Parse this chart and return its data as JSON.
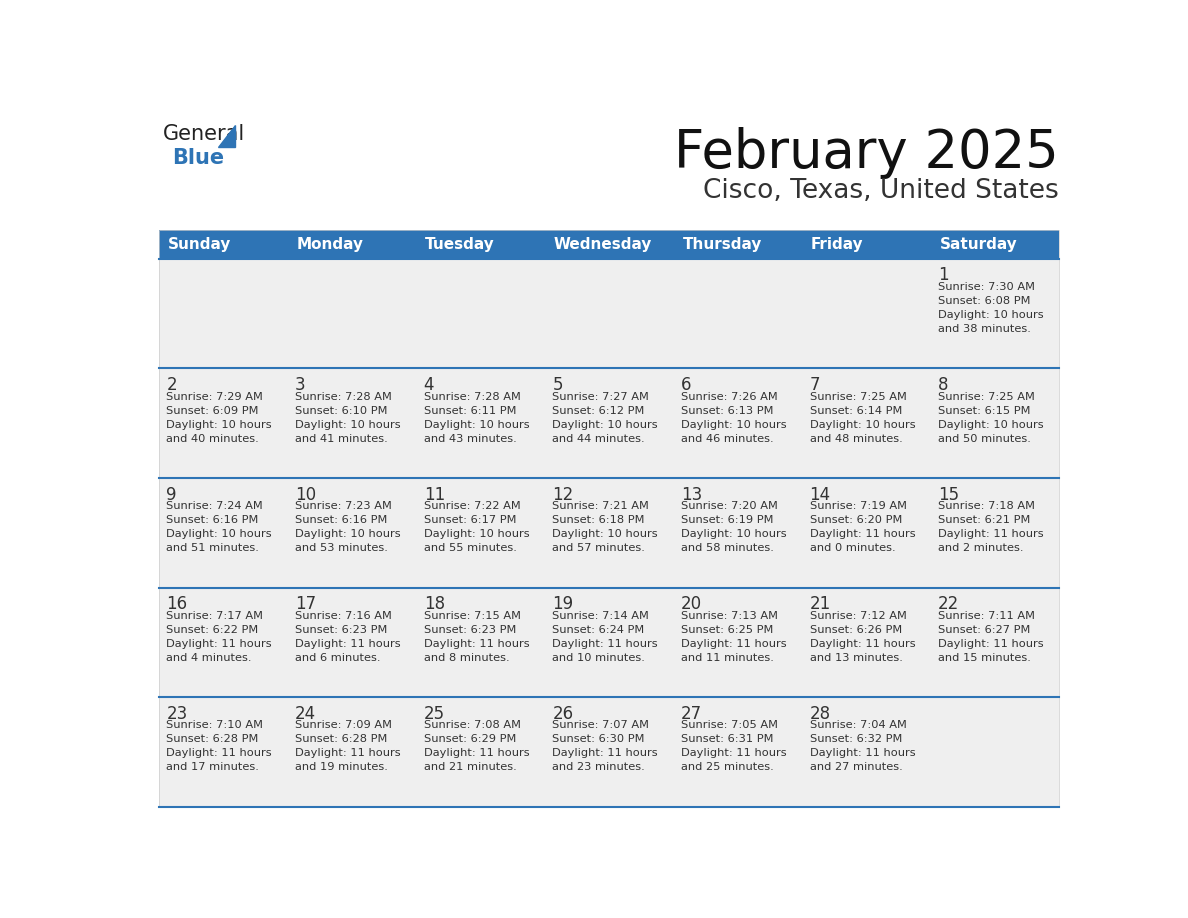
{
  "title": "February 2025",
  "subtitle": "Cisco, Texas, United States",
  "header_color": "#2E74B5",
  "header_text_color": "#FFFFFF",
  "cell_bg_color": "#EFEFEF",
  "border_color": "#2E74B5",
  "row_line_color": "#2E74B5",
  "text_color": "#333333",
  "day_number_color": "#333333",
  "day_headers": [
    "Sunday",
    "Monday",
    "Tuesday",
    "Wednesday",
    "Thursday",
    "Friday",
    "Saturday"
  ],
  "weeks": [
    [
      {
        "day": "",
        "info": ""
      },
      {
        "day": "",
        "info": ""
      },
      {
        "day": "",
        "info": ""
      },
      {
        "day": "",
        "info": ""
      },
      {
        "day": "",
        "info": ""
      },
      {
        "day": "",
        "info": ""
      },
      {
        "day": "1",
        "info": "Sunrise: 7:30 AM\nSunset: 6:08 PM\nDaylight: 10 hours\nand 38 minutes."
      }
    ],
    [
      {
        "day": "2",
        "info": "Sunrise: 7:29 AM\nSunset: 6:09 PM\nDaylight: 10 hours\nand 40 minutes."
      },
      {
        "day": "3",
        "info": "Sunrise: 7:28 AM\nSunset: 6:10 PM\nDaylight: 10 hours\nand 41 minutes."
      },
      {
        "day": "4",
        "info": "Sunrise: 7:28 AM\nSunset: 6:11 PM\nDaylight: 10 hours\nand 43 minutes."
      },
      {
        "day": "5",
        "info": "Sunrise: 7:27 AM\nSunset: 6:12 PM\nDaylight: 10 hours\nand 44 minutes."
      },
      {
        "day": "6",
        "info": "Sunrise: 7:26 AM\nSunset: 6:13 PM\nDaylight: 10 hours\nand 46 minutes."
      },
      {
        "day": "7",
        "info": "Sunrise: 7:25 AM\nSunset: 6:14 PM\nDaylight: 10 hours\nand 48 minutes."
      },
      {
        "day": "8",
        "info": "Sunrise: 7:25 AM\nSunset: 6:15 PM\nDaylight: 10 hours\nand 50 minutes."
      }
    ],
    [
      {
        "day": "9",
        "info": "Sunrise: 7:24 AM\nSunset: 6:16 PM\nDaylight: 10 hours\nand 51 minutes."
      },
      {
        "day": "10",
        "info": "Sunrise: 7:23 AM\nSunset: 6:16 PM\nDaylight: 10 hours\nand 53 minutes."
      },
      {
        "day": "11",
        "info": "Sunrise: 7:22 AM\nSunset: 6:17 PM\nDaylight: 10 hours\nand 55 minutes."
      },
      {
        "day": "12",
        "info": "Sunrise: 7:21 AM\nSunset: 6:18 PM\nDaylight: 10 hours\nand 57 minutes."
      },
      {
        "day": "13",
        "info": "Sunrise: 7:20 AM\nSunset: 6:19 PM\nDaylight: 10 hours\nand 58 minutes."
      },
      {
        "day": "14",
        "info": "Sunrise: 7:19 AM\nSunset: 6:20 PM\nDaylight: 11 hours\nand 0 minutes."
      },
      {
        "day": "15",
        "info": "Sunrise: 7:18 AM\nSunset: 6:21 PM\nDaylight: 11 hours\nand 2 minutes."
      }
    ],
    [
      {
        "day": "16",
        "info": "Sunrise: 7:17 AM\nSunset: 6:22 PM\nDaylight: 11 hours\nand 4 minutes."
      },
      {
        "day": "17",
        "info": "Sunrise: 7:16 AM\nSunset: 6:23 PM\nDaylight: 11 hours\nand 6 minutes."
      },
      {
        "day": "18",
        "info": "Sunrise: 7:15 AM\nSunset: 6:23 PM\nDaylight: 11 hours\nand 8 minutes."
      },
      {
        "day": "19",
        "info": "Sunrise: 7:14 AM\nSunset: 6:24 PM\nDaylight: 11 hours\nand 10 minutes."
      },
      {
        "day": "20",
        "info": "Sunrise: 7:13 AM\nSunset: 6:25 PM\nDaylight: 11 hours\nand 11 minutes."
      },
      {
        "day": "21",
        "info": "Sunrise: 7:12 AM\nSunset: 6:26 PM\nDaylight: 11 hours\nand 13 minutes."
      },
      {
        "day": "22",
        "info": "Sunrise: 7:11 AM\nSunset: 6:27 PM\nDaylight: 11 hours\nand 15 minutes."
      }
    ],
    [
      {
        "day": "23",
        "info": "Sunrise: 7:10 AM\nSunset: 6:28 PM\nDaylight: 11 hours\nand 17 minutes."
      },
      {
        "day": "24",
        "info": "Sunrise: 7:09 AM\nSunset: 6:28 PM\nDaylight: 11 hours\nand 19 minutes."
      },
      {
        "day": "25",
        "info": "Sunrise: 7:08 AM\nSunset: 6:29 PM\nDaylight: 11 hours\nand 21 minutes."
      },
      {
        "day": "26",
        "info": "Sunrise: 7:07 AM\nSunset: 6:30 PM\nDaylight: 11 hours\nand 23 minutes."
      },
      {
        "day": "27",
        "info": "Sunrise: 7:05 AM\nSunset: 6:31 PM\nDaylight: 11 hours\nand 25 minutes."
      },
      {
        "day": "28",
        "info": "Sunrise: 7:04 AM\nSunset: 6:32 PM\nDaylight: 11 hours\nand 27 minutes."
      },
      {
        "day": "",
        "info": ""
      }
    ]
  ],
  "logo_general_color": "#222222",
  "logo_blue_color": "#2E74B5",
  "logo_triangle_color": "#2E74B5"
}
